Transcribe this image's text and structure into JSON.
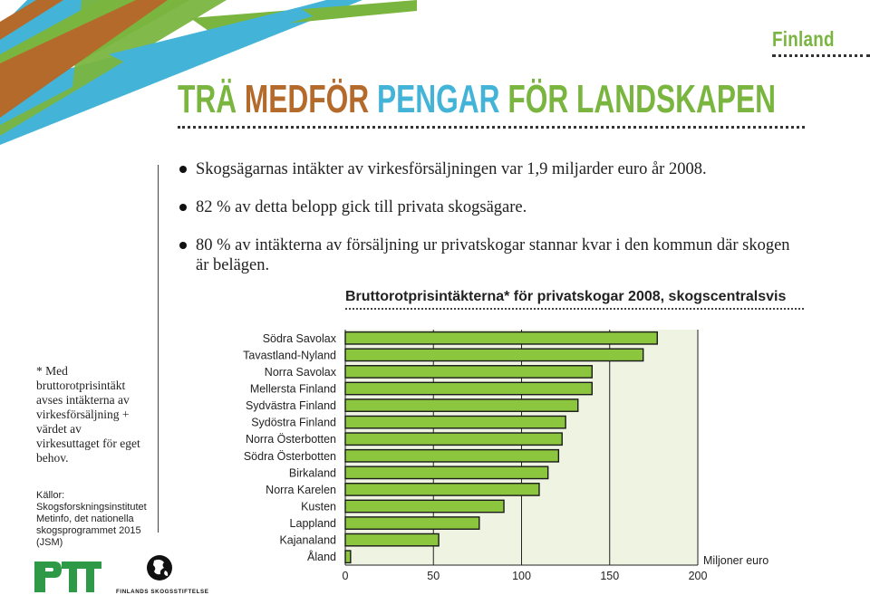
{
  "country_label": "Finland",
  "headline": {
    "w1": "TRÄ ",
    "w2": "MEDFÖR ",
    "w3": "PENGAR ",
    "w4": "FÖR LANDSKAPEN"
  },
  "bullets": [
    "Skogsägarnas intäkter av virkesförsäljningen var 1,9 miljarder euro år 2008.",
    "82 % av detta belopp gick till privata skogsägare.",
    "80 % av intäkterna av försäljning ur privatskogar stannar kvar i den kommun där skogen är belägen."
  ],
  "side_note": "* Med bruttorotprisintäkt avses intäkterna av virkesförsäljning + värdet av virkesuttaget för eget behov.",
  "sources": "Källor: Skogsforskningsinstitutet Metinfo, det nationella skogsprogrammet 2015 (JSM)",
  "logos": {
    "right_text": "FINLANDS SKOGSSTIFTELSE"
  },
  "colors": {
    "green": "#7ab540",
    "brown": "#b46a2a",
    "blue": "#43b4d8",
    "bar": "#8cc63f"
  },
  "chart_data": {
    "type": "bar",
    "orientation": "horizontal",
    "title": "Bruttorotprisintäkterna* för privatskogar 2008, skogscentralsvis",
    "xlabel": "Miljoner euro",
    "ylabel": "",
    "xlim": [
      0,
      200
    ],
    "xticks": [
      0,
      50,
      100,
      150,
      200
    ],
    "grid": true,
    "categories": [
      "Södra Savolax",
      "Tavastland-Nyland",
      "Norra Savolax",
      "Mellersta Finland",
      "Sydvästra Finland",
      "Sydöstra Finland",
      "Norra Österbotten",
      "Södra Österbotten",
      "Birkaland",
      "Norra Karelen",
      "Kusten",
      "Lappland",
      "Kajanaland",
      "Åland"
    ],
    "values": [
      177,
      169,
      140,
      140,
      132,
      125,
      123,
      121,
      115,
      110,
      90,
      76,
      53,
      3
    ]
  }
}
